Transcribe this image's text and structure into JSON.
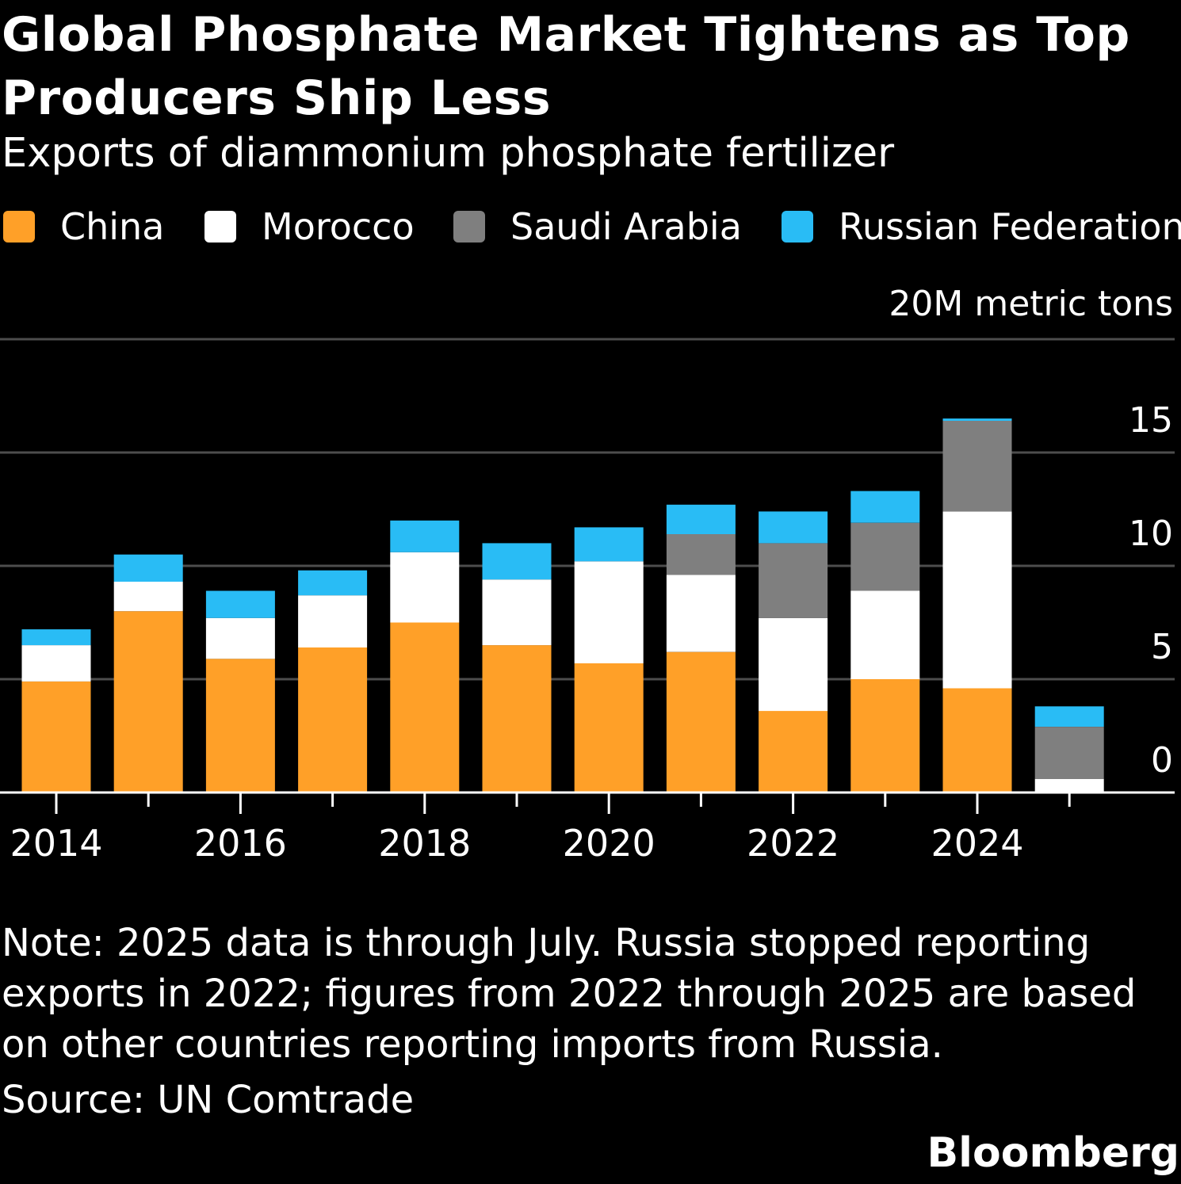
{
  "header": {
    "title": "Global Phosphate Market Tightens as Top Producers Ship Less",
    "subtitle": "Exports of diammonium phosphate fertilizer"
  },
  "legend": [
    {
      "label": "China",
      "color": "#ffa028"
    },
    {
      "label": "Morocco",
      "color": "#ffffff"
    },
    {
      "label": "Saudi Arabia",
      "color": "#7f7f7f"
    },
    {
      "label": "Russian Federation",
      "color": "#29bcf5"
    }
  ],
  "chart_data": {
    "type": "bar",
    "stacked": true,
    "unit_label": "20M metric tons",
    "categories": [
      "2014",
      "2015",
      "2016",
      "2017",
      "2018",
      "2019",
      "2020",
      "2021",
      "2022",
      "2023",
      "2024",
      "2025"
    ],
    "x_tick_labels": [
      "2014",
      "2016",
      "2018",
      "2020",
      "2022",
      "2024"
    ],
    "series": [
      {
        "name": "China",
        "color": "#ffa028",
        "values": [
          4.9,
          8.0,
          5.9,
          6.4,
          7.5,
          6.5,
          5.7,
          6.2,
          3.6,
          5.0,
          4.6,
          0
        ]
      },
      {
        "name": "Morocco",
        "color": "#ffffff",
        "values": [
          1.6,
          1.3,
          1.8,
          2.3,
          3.1,
          2.9,
          4.5,
          3.4,
          4.1,
          3.9,
          7.8,
          0.6
        ]
      },
      {
        "name": "Saudi Arabia",
        "color": "#7f7f7f",
        "values": [
          0,
          0,
          0,
          0,
          0,
          0,
          0,
          1.8,
          3.3,
          3.0,
          4.0,
          2.3
        ]
      },
      {
        "name": "Russian Federation",
        "color": "#29bcf5",
        "values": [
          0.7,
          1.2,
          1.2,
          1.1,
          1.4,
          1.6,
          1.5,
          1.3,
          1.4,
          1.4,
          0.1,
          0.9
        ]
      }
    ],
    "ylim": [
      0,
      20
    ],
    "y_ticks": [
      0,
      5,
      10,
      15
    ],
    "y_axis_side": "right",
    "grid": true,
    "legend_position": "top-left"
  },
  "footer": {
    "note": "Note: 2025 data is through July. Russia stopped reporting exports in 2022; figures from 2022 through 2025 are based on other countries reporting imports from Russia.",
    "source": "Source: UN Comtrade",
    "brand": "Bloomberg"
  },
  "colors": {
    "background": "#000000",
    "gridline": "#4d4d4d",
    "axis": "#ffffff",
    "text": "#ffffff"
  }
}
